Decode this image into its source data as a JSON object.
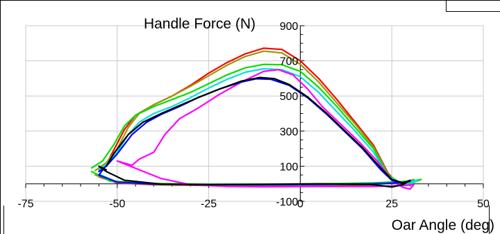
{
  "chart_data": {
    "type": "line",
    "xlabel": "Oar Angle (deg)",
    "ylabel": "Handle Force (N)",
    "xlim": [
      -75,
      50
    ],
    "ylim": [
      -100,
      900
    ],
    "x_ticks": [
      -75,
      -50,
      -25,
      0,
      25,
      50
    ],
    "y_ticks": [
      -100,
      100,
      300,
      500,
      700,
      900
    ],
    "grid": true,
    "legend": "none",
    "series": [
      {
        "color": "#ff0000",
        "points": [
          [
            -55,
            70
          ],
          [
            -53,
            110
          ],
          [
            -51,
            190
          ],
          [
            -48,
            310
          ],
          [
            -45,
            390
          ],
          [
            -40,
            450
          ],
          [
            -35,
            500
          ],
          [
            -30,
            560
          ],
          [
            -25,
            630
          ],
          [
            -20,
            690
          ],
          [
            -15,
            740
          ],
          [
            -10,
            772
          ],
          [
            -5,
            765
          ],
          [
            0,
            700
          ],
          [
            5,
            600
          ],
          [
            10,
            480
          ],
          [
            15,
            350
          ],
          [
            20,
            220
          ],
          [
            24,
            60
          ],
          [
            26,
            15
          ],
          [
            29,
            -5
          ],
          [
            31,
            20
          ],
          [
            28,
            10
          ],
          [
            20,
            -5
          ],
          [
            5,
            -8
          ],
          [
            -10,
            -10
          ],
          [
            -25,
            -10
          ],
          [
            -40,
            -5
          ],
          [
            -50,
            5
          ],
          [
            -55,
            40
          ]
        ]
      },
      {
        "color": "#999900",
        "points": [
          [
            -56,
            75
          ],
          [
            -53,
            120
          ],
          [
            -50,
            200
          ],
          [
            -47,
            320
          ],
          [
            -44,
            400
          ],
          [
            -40,
            450
          ],
          [
            -35,
            500
          ],
          [
            -30,
            555
          ],
          [
            -25,
            615
          ],
          [
            -20,
            675
          ],
          [
            -15,
            725
          ],
          [
            -10,
            755
          ],
          [
            -5,
            745
          ],
          [
            0,
            680
          ],
          [
            5,
            580
          ],
          [
            10,
            460
          ],
          [
            15,
            340
          ],
          [
            20,
            210
          ],
          [
            24,
            55
          ],
          [
            26,
            10
          ],
          [
            29,
            -5
          ],
          [
            31,
            25
          ],
          [
            28,
            5
          ],
          [
            20,
            -3
          ],
          [
            5,
            -5
          ],
          [
            -10,
            -8
          ],
          [
            -25,
            -8
          ],
          [
            -40,
            -3
          ],
          [
            -50,
            10
          ],
          [
            -56,
            50
          ]
        ]
      },
      {
        "color": "#00e000",
        "points": [
          [
            -57,
            90
          ],
          [
            -54,
            130
          ],
          [
            -51,
            220
          ],
          [
            -48,
            330
          ],
          [
            -45,
            390
          ],
          [
            -40,
            440
          ],
          [
            -35,
            480
          ],
          [
            -30,
            520
          ],
          [
            -25,
            570
          ],
          [
            -20,
            620
          ],
          [
            -15,
            660
          ],
          [
            -10,
            680
          ],
          [
            -5,
            678
          ],
          [
            0,
            640
          ],
          [
            5,
            550
          ],
          [
            10,
            440
          ],
          [
            15,
            320
          ],
          [
            20,
            200
          ],
          [
            24,
            50
          ],
          [
            27,
            10
          ],
          [
            30,
            0
          ],
          [
            33,
            25
          ],
          [
            30,
            15
          ],
          [
            20,
            5
          ],
          [
            5,
            0
          ],
          [
            -10,
            -2
          ],
          [
            -25,
            -2
          ],
          [
            -40,
            2
          ],
          [
            -52,
            15
          ],
          [
            -57,
            70
          ]
        ]
      },
      {
        "color": "#00e0e0",
        "points": [
          [
            -55,
            80
          ],
          [
            -53,
            110
          ],
          [
            -50,
            180
          ],
          [
            -47,
            280
          ],
          [
            -44,
            350
          ],
          [
            -40,
            400
          ],
          [
            -35,
            440
          ],
          [
            -30,
            490
          ],
          [
            -25,
            545
          ],
          [
            -20,
            595
          ],
          [
            -15,
            635
          ],
          [
            -10,
            655
          ],
          [
            -5,
            650
          ],
          [
            0,
            610
          ],
          [
            5,
            520
          ],
          [
            10,
            410
          ],
          [
            15,
            300
          ],
          [
            20,
            180
          ],
          [
            24,
            45
          ],
          [
            27,
            5
          ],
          [
            30,
            -5
          ],
          [
            32,
            20
          ],
          [
            29,
            5
          ],
          [
            20,
            -2
          ],
          [
            5,
            -5
          ],
          [
            -10,
            -7
          ],
          [
            -25,
            -7
          ],
          [
            -40,
            -2
          ],
          [
            -50,
            8
          ],
          [
            -55,
            55
          ]
        ]
      },
      {
        "color": "#ff00ff",
        "points": [
          [
            -50,
            130
          ],
          [
            -46,
            105
          ],
          [
            -44,
            140
          ],
          [
            -40,
            180
          ],
          [
            -37,
            280
          ],
          [
            -33,
            370
          ],
          [
            -28,
            430
          ],
          [
            -22,
            510
          ],
          [
            -16,
            580
          ],
          [
            -10,
            640
          ],
          [
            -6,
            650
          ],
          [
            -2,
            620
          ],
          [
            2,
            540
          ],
          [
            6,
            440
          ],
          [
            11,
            340
          ],
          [
            16,
            240
          ],
          [
            21,
            130
          ],
          [
            25,
            20
          ],
          [
            28,
            -20
          ],
          [
            30,
            -30
          ],
          [
            31,
            -5
          ],
          [
            28,
            -10
          ],
          [
            20,
            -15
          ],
          [
            5,
            -15
          ],
          [
            -10,
            -17
          ],
          [
            -20,
            -15
          ],
          [
            -30,
            -5
          ],
          [
            -38,
            30
          ],
          [
            -44,
            80
          ],
          [
            -50,
            130
          ]
        ]
      },
      {
        "color": "#0000ff",
        "points": [
          [
            -55,
            70
          ],
          [
            -53,
            100
          ],
          [
            -50,
            170
          ],
          [
            -46,
            280
          ],
          [
            -42,
            350
          ],
          [
            -38,
            395
          ],
          [
            -33,
            440
          ],
          [
            -28,
            490
          ],
          [
            -22,
            540
          ],
          [
            -16,
            580
          ],
          [
            -12,
            598
          ],
          [
            -8,
            595
          ],
          [
            -3,
            560
          ],
          [
            2,
            490
          ],
          [
            7,
            400
          ],
          [
            12,
            300
          ],
          [
            17,
            200
          ],
          [
            22,
            80
          ],
          [
            25,
            20
          ],
          [
            28,
            0
          ],
          [
            30,
            15
          ],
          [
            27,
            5
          ],
          [
            20,
            0
          ],
          [
            5,
            -3
          ],
          [
            -10,
            -5
          ],
          [
            -25,
            -5
          ],
          [
            -40,
            -2
          ],
          [
            -50,
            10
          ],
          [
            -55,
            50
          ],
          [
            -54,
            78
          ]
        ]
      },
      {
        "color": "#000000",
        "points": [
          [
            -53,
            100
          ],
          [
            -51,
            170
          ],
          [
            -47,
            280
          ],
          [
            -43,
            350
          ],
          [
            -38,
            400
          ],
          [
            -33,
            445
          ],
          [
            -28,
            490
          ],
          [
            -22,
            540
          ],
          [
            -16,
            585
          ],
          [
            -11,
            605
          ],
          [
            -7,
            598
          ],
          [
            -3,
            565
          ],
          [
            2,
            495
          ],
          [
            7,
            405
          ],
          [
            12,
            305
          ],
          [
            17,
            205
          ],
          [
            22,
            90
          ],
          [
            25,
            25
          ],
          [
            28,
            5
          ],
          [
            30,
            20
          ],
          [
            28,
            -5
          ],
          [
            25,
            -18
          ],
          [
            20,
            -5
          ],
          [
            5,
            0
          ],
          [
            -10,
            -3
          ],
          [
            -25,
            -5
          ],
          [
            -38,
            -2
          ],
          [
            -48,
            20
          ],
          [
            -53,
            70
          ],
          [
            -55,
            100
          ],
          [
            -53,
            80
          ]
        ]
      }
    ]
  }
}
